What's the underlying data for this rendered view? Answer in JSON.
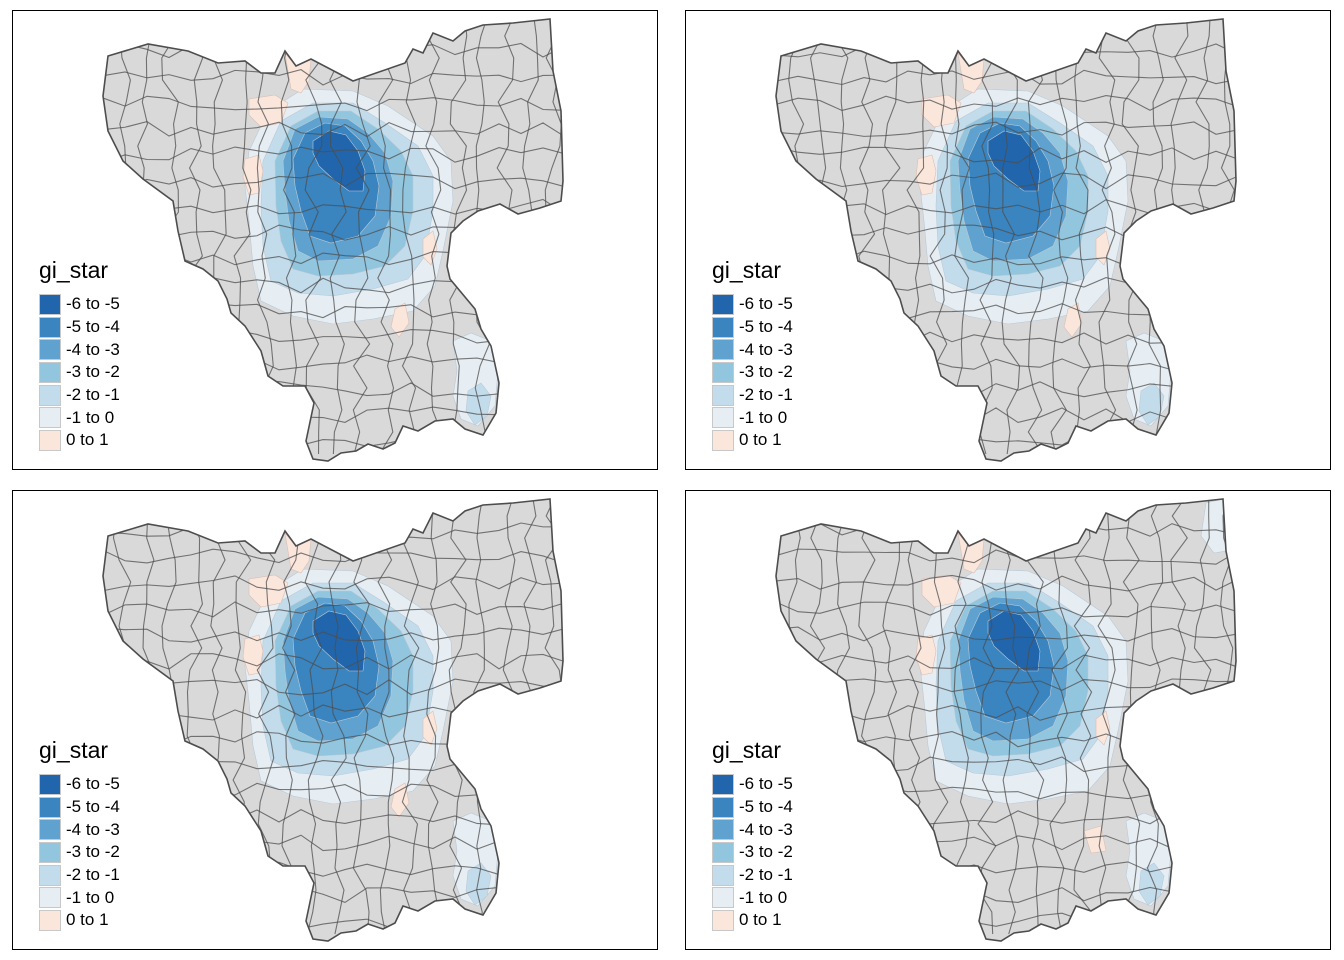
{
  "legend": {
    "title": "gi_star",
    "classes": [
      {
        "label": "-6 to -5",
        "color": "#2166ac"
      },
      {
        "label": "-5 to -4",
        "color": "#3a84bf"
      },
      {
        "label": "-4 to -3",
        "color": "#5fa2d0"
      },
      {
        "label": "-3 to -2",
        "color": "#92c5de"
      },
      {
        "label": "-2 to -1",
        "color": "#c3dceb"
      },
      {
        "label": "-1 to 0",
        "color": "#e6eef4"
      },
      {
        "label": "0 to 1",
        "color": "#fbe6dc"
      }
    ]
  },
  "map_style": {
    "no_data_color": "#d9d9d9",
    "border_color": "#4d4d4d"
  },
  "panels": [
    {
      "id": "top-left"
    },
    {
      "id": "top-right"
    },
    {
      "id": "bottom-left"
    },
    {
      "id": "bottom-right"
    }
  ]
}
